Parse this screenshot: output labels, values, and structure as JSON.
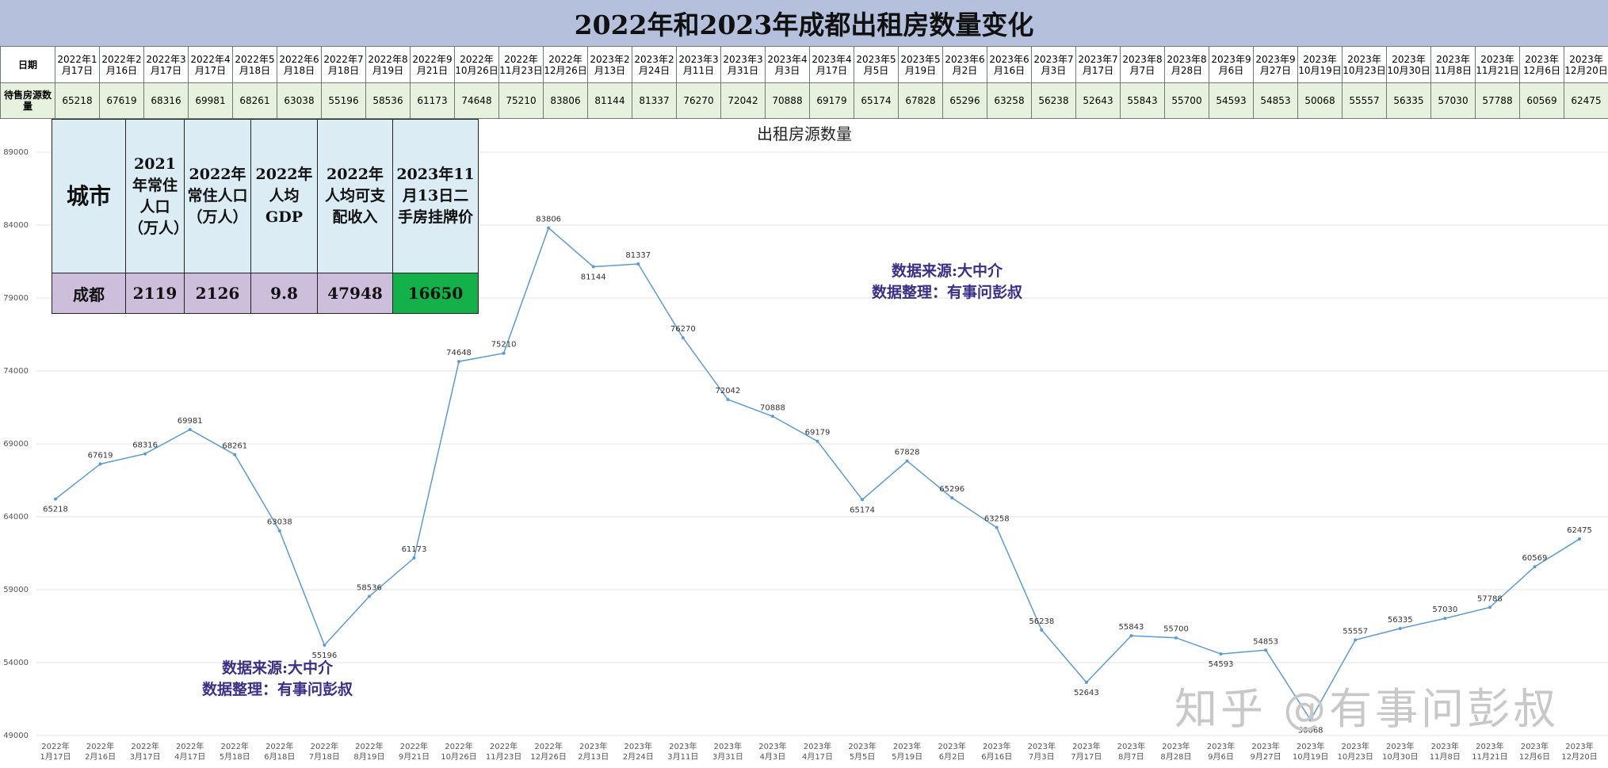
{
  "title": "2022年和2023年成都出租房数量变化",
  "table": {
    "row1_label": "日期",
    "row2_label": "待售房源数量",
    "dates": [
      "2022年1月17日",
      "2022年2月16日",
      "2022年3月17日",
      "2022年4月17日",
      "2022年5月18日",
      "2022年6月18日",
      "2022年7月18日",
      "2022年8月19日",
      "2022年9月21日",
      "2022年10月26日",
      "2022年11月23日",
      "2022年12月26日",
      "2023年2月13日",
      "2023年2月24日",
      "2023年3月11日",
      "2023年3月31日",
      "2023年4月3日",
      "2023年4月17日",
      "2023年5月5日",
      "2023年5月19日",
      "2023年6月2日",
      "2023年6月16日",
      "2023年7月3日",
      "2023年7月17日",
      "2023年8月7日",
      "2023年8月28日",
      "2023年9月6日",
      "2023年9月27日",
      "2023年10月19日",
      "2023年10月23日",
      "2023年10月30日",
      "2023年11月8日",
      "2023年11月21日",
      "2023年12月6日",
      "2023年12月20日"
    ],
    "counts": [
      "65218",
      "67619",
      "68316",
      "69981",
      "68261",
      "63038",
      "55196",
      "58536",
      "61173",
      "74648",
      "75210",
      "83806",
      "81144",
      "81337",
      "76270",
      "72042",
      "70888",
      "69179",
      "65174",
      "67828",
      "65296",
      "63258",
      "56238",
      "52643",
      "55843",
      "55700",
      "54593",
      "54853",
      "50068",
      "55557",
      "56335",
      "57030",
      "57788",
      "60569",
      "62475"
    ]
  },
  "city_table": {
    "headers": [
      "城市",
      "2021年常住人口（万人）",
      "2022年常住人口（万人）",
      "2022年人均GDP",
      "2022年人均可支配收入",
      "2023年11月13日二手房挂牌价"
    ],
    "values": [
      "成都",
      "2119",
      "2126",
      "9.8",
      "47948",
      "16650"
    ]
  },
  "notes": {
    "line1": "数据来源:大中介",
    "line2": "数据整理：有事问彭叔"
  },
  "watermark": "知乎 @有事问彭叔",
  "colors": {
    "line": "#5b9bd5",
    "title_bg": "#b4c0dc",
    "count_row_bg": "#e6f2dd",
    "city_header_bg": "#dcecf4",
    "city_value_bg": "#cdbfdc",
    "price_cell_bg": "#14b14a",
    "note_text": "#3a2f86"
  },
  "chart_data": {
    "type": "line",
    "title": "出租房源数量",
    "x_labels": [
      "2022年1月17日",
      "2022年2月16日",
      "2022年3月17日",
      "2022年4月17日",
      "2022年5月18日",
      "2022年6月18日",
      "2022年7月18日",
      "2022年8月19日",
      "2022年9月21日",
      "2022年10月26日",
      "2022年11月23日",
      "2022年12月26日",
      "2023年2月13日",
      "2023年2月24日",
      "2023年3月11日",
      "2023年3月31日",
      "2023年4月3日",
      "2023年4月17日",
      "2023年5月5日",
      "2023年5月19日",
      "2023年6月2日",
      "2023年6月16日",
      "2023年7月3日",
      "2023年7月17日",
      "2023年8月7日",
      "2023年8月28日",
      "2023年9月6日",
      "2023年9月27日",
      "2023年10月19日",
      "2023年10月23日",
      "2023年10月30日",
      "2023年11月8日",
      "2023年11月21日",
      "2023年12月6日",
      "2023年12月20日"
    ],
    "values": [
      65218,
      67619,
      68316,
      69981,
      68261,
      63038,
      55196,
      58536,
      61173,
      74648,
      75210,
      83806,
      81144,
      81337,
      76270,
      72042,
      70888,
      69179,
      65174,
      67828,
      65296,
      63258,
      56238,
      52643,
      55843,
      55700,
      54593,
      54853,
      50068,
      55557,
      56335,
      57030,
      57788,
      60569,
      62475
    ],
    "ylim": [
      49000,
      89000
    ],
    "yticks": [
      "49000",
      "54000",
      "59000",
      "64000",
      "69000",
      "74000",
      "79000",
      "84000",
      "89000"
    ],
    "grid": true,
    "legend": "none"
  }
}
